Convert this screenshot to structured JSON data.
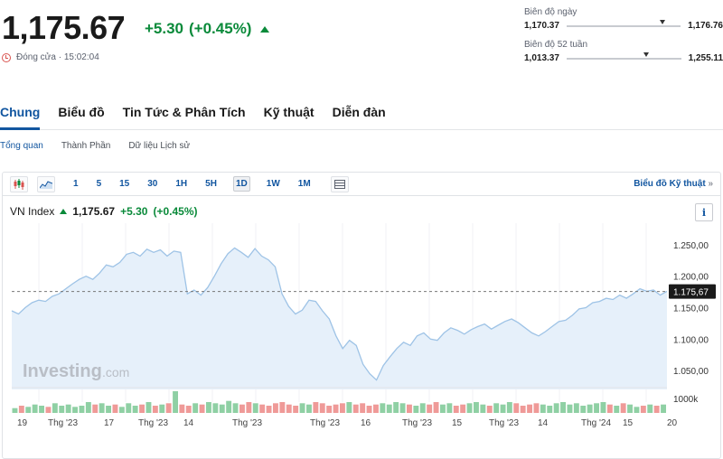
{
  "quote": {
    "price": "1,175.67",
    "change": "+5.30",
    "change_pct": "(+0.45%)",
    "close_text": "Đóng cửa · 15:02:04"
  },
  "ranges": {
    "day": {
      "label": "Biên độ ngày",
      "low": "1,170.37",
      "high": "1,176.76",
      "position": 0.82
    },
    "week52": {
      "label": "Biên độ 52 tuần",
      "low": "1,013.37",
      "high": "1,255.11",
      "position": 0.67
    }
  },
  "tabs": [
    "Chung",
    "Biểu đồ",
    "Tin Tức & Phân Tích",
    "Kỹ thuật",
    "Diễn đàn"
  ],
  "subtabs": [
    "Tổng quan",
    "Thành Phần",
    "Dữ liệu Lịch sử"
  ],
  "toolbar": {
    "periods": [
      "1",
      "5",
      "15",
      "30",
      "1H",
      "5H",
      "1D",
      "1W",
      "1M"
    ],
    "active_period": "1D",
    "tech_link": "Biểu đồ Kỹ thuật",
    "tech_link_arrow": "»"
  },
  "legend": {
    "name": "VN Index",
    "value": "1,175.67",
    "change": "+5.30",
    "change_pct": "(+0.45%)"
  },
  "info_label": "i",
  "watermark": {
    "brand": "Investing",
    "suffix": ".com"
  },
  "colors": {
    "up": "#0a8a3a",
    "down": "#d9534f",
    "accent": "#1256a0",
    "line": "#9ec3e6",
    "fill": "#e6f0fa"
  },
  "chart_data": {
    "type": "area",
    "ylim": [
      1020,
      1270
    ],
    "yticks": [
      "1.250,00",
      "1.200,00",
      "1.150,00",
      "1.100,00",
      "1.050,00"
    ],
    "ytick_values": [
      1250,
      1200,
      1150,
      1100,
      1050
    ],
    "current_label": "1.175,67",
    "current_value": 1175.67,
    "volume_label": "1000k",
    "xticks": [
      "19",
      "Thg '23",
      "17",
      "Thg '23",
      "14",
      "Thg '23",
      "Thg '23",
      "16",
      "Thg '23",
      "15",
      "Thg '23",
      "14",
      "Thg '24",
      "15",
      "20"
    ],
    "values": [
      1145,
      1140,
      1150,
      1158,
      1162,
      1160,
      1168,
      1172,
      1180,
      1188,
      1195,
      1200,
      1195,
      1205,
      1218,
      1215,
      1222,
      1235,
      1238,
      1232,
      1243,
      1238,
      1242,
      1232,
      1240,
      1238,
      1172,
      1178,
      1170,
      1182,
      1200,
      1220,
      1236,
      1245,
      1238,
      1230,
      1244,
      1232,
      1226,
      1215,
      1172,
      1152,
      1140,
      1146,
      1162,
      1160,
      1145,
      1132,
      1105,
      1085,
      1098,
      1090,
      1060,
      1045,
      1035,
      1058,
      1072,
      1085,
      1095,
      1090,
      1105,
      1110,
      1100,
      1098,
      1110,
      1118,
      1114,
      1108,
      1115,
      1120,
      1124,
      1116,
      1122,
      1128,
      1132,
      1126,
      1118,
      1110,
      1105,
      1112,
      1120,
      1128,
      1130,
      1138,
      1148,
      1150,
      1158,
      1160,
      1165,
      1163,
      1170,
      1165,
      1172,
      1180,
      1176,
      1178,
      1170,
      1176
    ],
    "volume": [
      4,
      6,
      5,
      7,
      6,
      5,
      8,
      6,
      7,
      5,
      6,
      9,
      7,
      8,
      6,
      7,
      5,
      8,
      6,
      7,
      9,
      6,
      7,
      8,
      18,
      7,
      6,
      8,
      7,
      9,
      8,
      7,
      10,
      8,
      7,
      9,
      8,
      7,
      6,
      8,
      9,
      7,
      6,
      8,
      7,
      9,
      8,
      6,
      7,
      8,
      9,
      7,
      8,
      6,
      7,
      8,
      7,
      9,
      8,
      7,
      6,
      8,
      7,
      9,
      7,
      8,
      6,
      7,
      8,
      9,
      7,
      6,
      8,
      7,
      9,
      8,
      6,
      7,
      8,
      7,
      6,
      8,
      9,
      7,
      8,
      6,
      7,
      8,
      9,
      7,
      6,
      8,
      7,
      5,
      6,
      7,
      6,
      7
    ]
  }
}
